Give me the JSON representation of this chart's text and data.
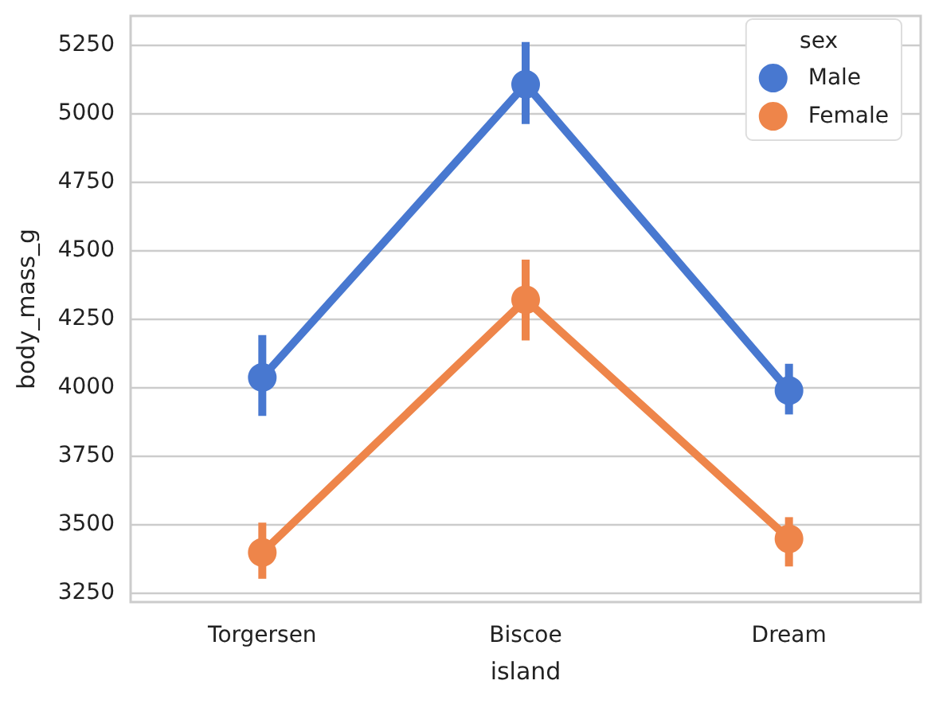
{
  "chart_data": {
    "type": "line",
    "xlabel": "island",
    "ylabel": "body_mass_g",
    "legend_title": "sex",
    "categories": [
      "Torgersen",
      "Biscoe",
      "Dream"
    ],
    "series": [
      {
        "name": "Male",
        "color": "#4878d0",
        "values": [
          4035,
          5105,
          3987
        ],
        "errors": [
          [
            3895,
            4190
          ],
          [
            4960,
            5260
          ],
          [
            3900,
            4085
          ]
        ]
      },
      {
        "name": "Female",
        "color": "#ee854a",
        "values": [
          3396,
          4319,
          3446
        ],
        "errors": [
          [
            3300,
            3505
          ],
          [
            4170,
            4465
          ],
          [
            3345,
            3525
          ]
        ]
      }
    ],
    "ylim": [
      3215,
      5355
    ],
    "yticks": [
      3250,
      3500,
      3750,
      4000,
      4250,
      4500,
      4750,
      5000,
      5250
    ],
    "grid": "y",
    "legend": "top right",
    "marker": "circle",
    "line_style": "solid"
  }
}
